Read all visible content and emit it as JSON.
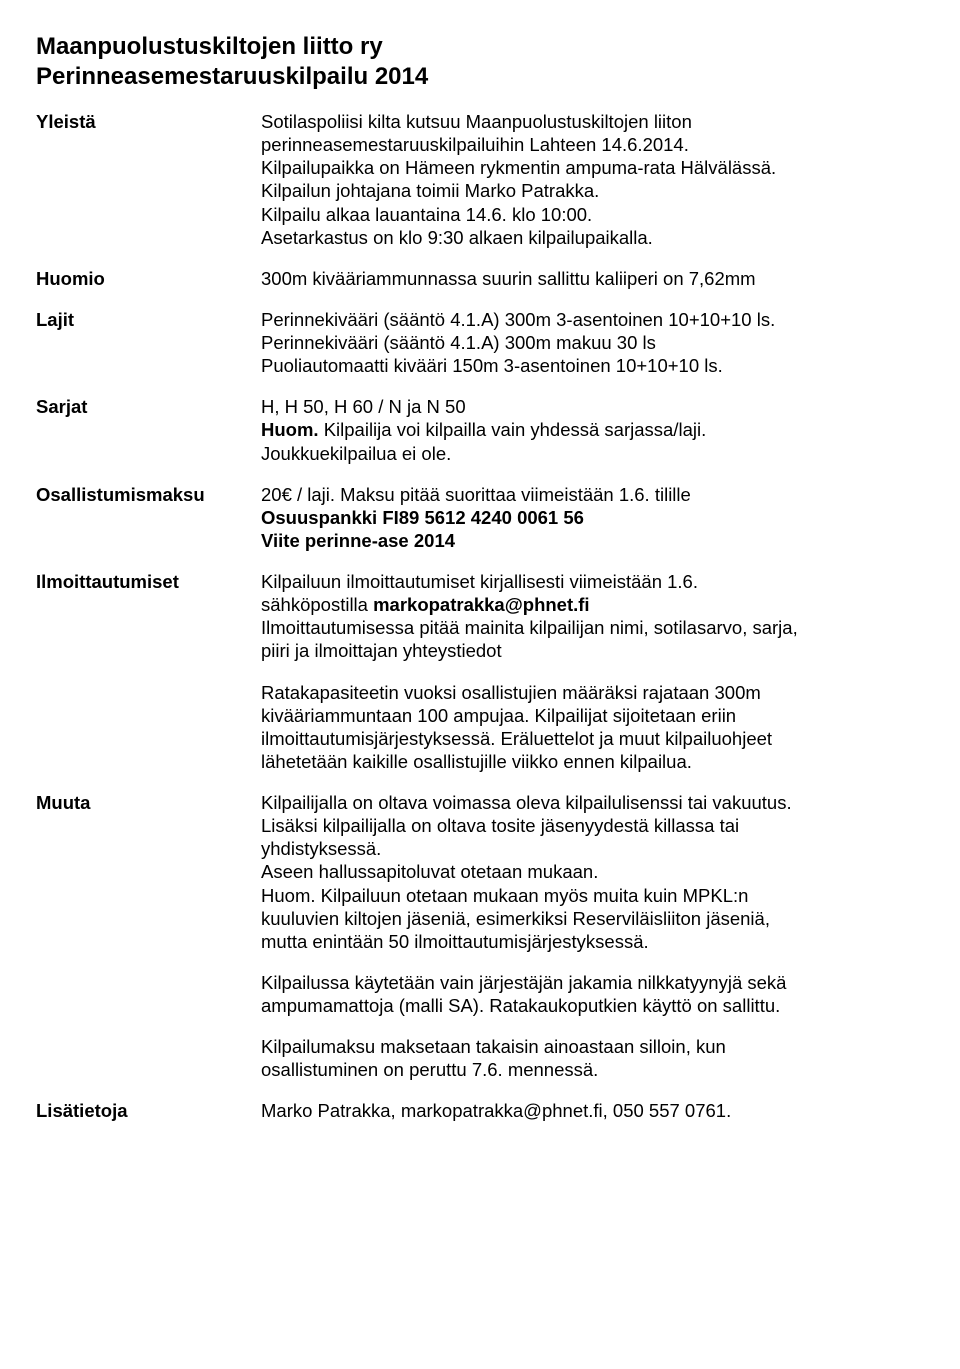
{
  "title_line1": "Maanpuolustuskiltojen liitto ry",
  "title_line2": "Perinneasemestaruuskilpailu 2014",
  "labels": {
    "yleista": "Yleistä",
    "huomio": "Huomio",
    "lajit": "Lajit",
    "sarjat": "Sarjat",
    "osallistumismaksu": "Osallistumismaksu",
    "ilmoittautumiset": "Ilmoittautumiset",
    "muuta": "Muuta",
    "lisatietoja": "Lisätietoja"
  },
  "yleista": {
    "l1": "Sotilaspoliisi kilta kutsuu Maanpuolustuskiltojen liiton",
    "l2": "perinneasemestaruuskilpailuihin Lahteen 14.6.2014.",
    "l3": "Kilpailupaikka on Hämeen rykmentin ampuma-rata Hälvälässä.",
    "l4": "Kilpailun johtajana toimii Marko Patrakka.",
    "l5": "Kilpailu alkaa lauantaina 14.6. klo 10:00.",
    "l6": "Asetarkastus on klo 9:30 alkaen kilpailupaikalla."
  },
  "huomio": {
    "l1": "300m kivääriammunnassa suurin sallittu kaliiperi on 7,62mm"
  },
  "lajit": {
    "l1": "Perinnekivääri (sääntö 4.1.A) 300m 3-asentoinen 10+10+10 ls.",
    "l2": "Perinnekivääri (sääntö 4.1.A) 300m makuu 30 ls",
    "l3": "Puoliautomaatti kivääri 150m 3-asentoinen 10+10+10 ls."
  },
  "sarjat": {
    "l1": "H, H 50, H 60 / N ja N 50",
    "l2a": "Huom. ",
    "l2b": "Kilpailija voi kilpailla vain yhdessä sarjassa/laji.",
    "l3": "Joukkuekilpailua ei ole."
  },
  "osallistumismaksu": {
    "l1": "20€ / laji. Maksu pitää suorittaa viimeistään 1.6. tilille",
    "l2pre": " ",
    "l2": "Osuuspankki FI89 5612 4240 0061 56",
    "l3": "Viite perinne-ase 2014"
  },
  "ilmoittautumiset": {
    "p1l1": "Kilpailuun ilmoittautumiset kirjallisesti viimeistään 1.6.",
    "p1l2pre": " sähköpostilla ",
    "p1l2b": "markopatrakka@phnet.fi",
    "p1l3": "Ilmoittautumisessa pitää mainita kilpailijan nimi, sotilasarvo, sarja,",
    "p1l4": "piiri ja ilmoittajan yhteystiedot",
    "p2l1": "Ratakapasiteetin vuoksi osallistujien määräksi rajataan 300m",
    "p2l2": "kivääriammuntaan 100 ampujaa. Kilpailijat sijoitetaan eriin",
    "p2l3": "ilmoittautumisjärjestyksessä. Eräluettelot ja muut kilpailuohjeet",
    "p2l4": "lähetetään kaikille osallistujille viikko ennen kilpailua."
  },
  "muuta": {
    "p1l1": "Kilpailijalla on oltava voimassa oleva kilpailulisenssi tai vakuutus.",
    "p1l2": "Lisäksi kilpailijalla on oltava tosite jäsenyydestä killassa tai",
    "p1l3": "yhdistyksessä.",
    "p1l4": "Aseen hallussapitoluvat otetaan mukaan.",
    "p1l5": "Huom. Kilpailuun otetaan mukaan myös muita kuin MPKL:n",
    "p1l6": "kuuluvien kiltojen jäseniä, esimerkiksi Reserviläisliiton jäseniä,",
    "p1l7": "mutta enintään 50 ilmoittautumisjärjestyksessä.",
    "p2l1": "Kilpailussa käytetään vain järjestäjän jakamia nilkkatyynyjä sekä",
    "p2l2": "ampumamattoja (malli SA). Ratakaukoputkien käyttö on sallittu.",
    "p3l1": "Kilpailumaksu maksetaan takaisin ainoastaan silloin, kun",
    "p3l2": "osallistuminen on peruttu 7.6. mennessä."
  },
  "lisatietoja": {
    "l1": "Marko Patrakka, markopatrakka@phnet.fi, 050 557 0761."
  }
}
